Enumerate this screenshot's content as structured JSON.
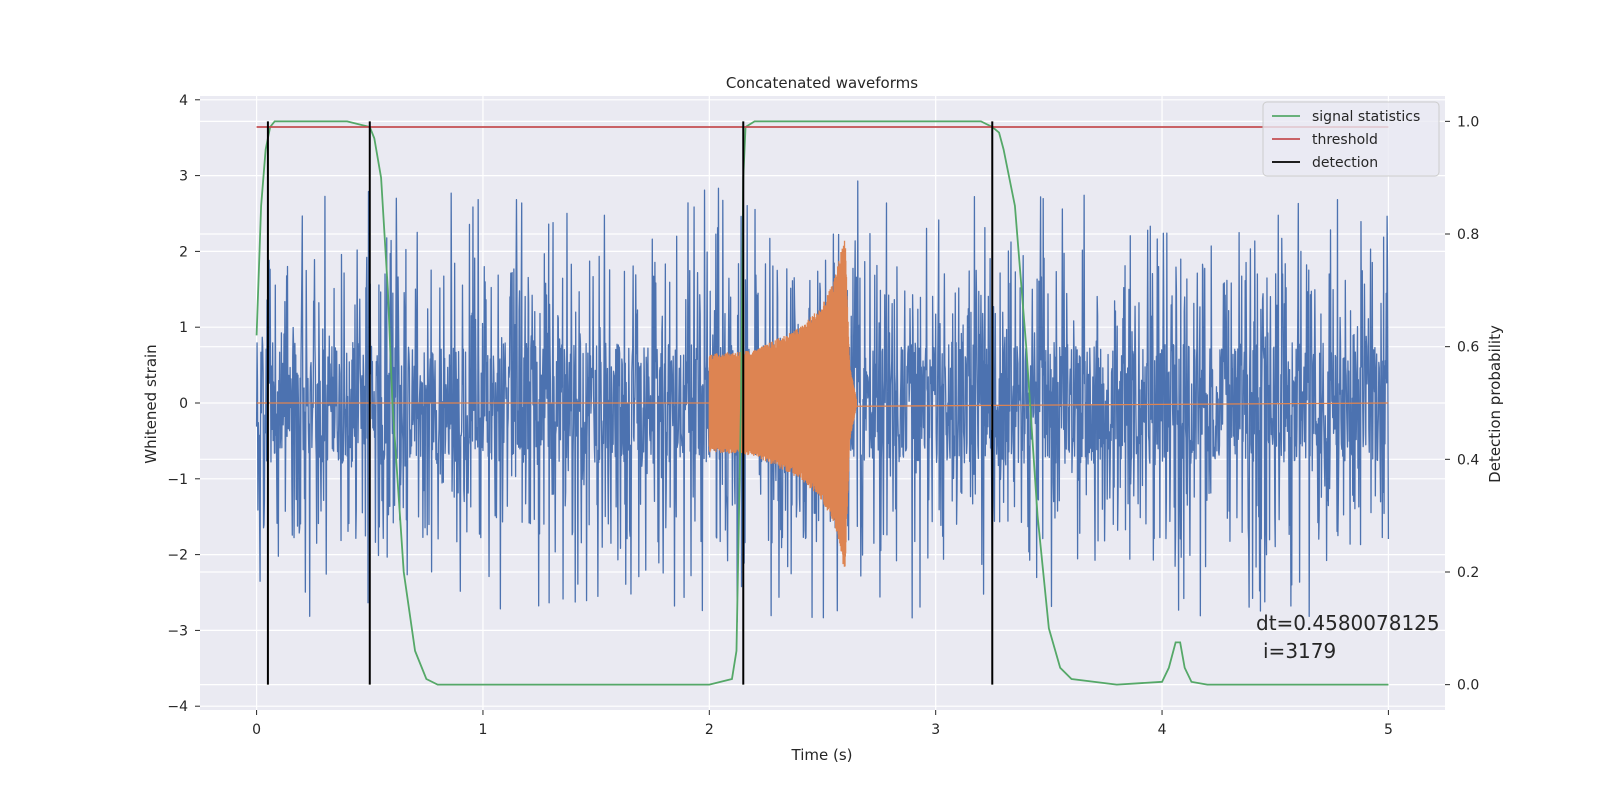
{
  "chart_data": {
    "type": "line",
    "title": "Concatenated waveforms",
    "xlabel": "Time (s)",
    "ylabel": "Whitened strain",
    "y2label": "Detection probability",
    "xlim": [
      -0.25,
      5.25
    ],
    "ylim": [
      -4.05,
      4.05
    ],
    "y2lim": [
      -0.045,
      1.045
    ],
    "xticks": [
      0,
      1,
      2,
      3,
      4,
      5
    ],
    "xtick_labels": [
      "0",
      "1",
      "2",
      "3",
      "4",
      "5"
    ],
    "yticks": [
      -4,
      -3,
      -2,
      -1,
      0,
      1,
      2,
      3,
      4
    ],
    "ytick_labels": [
      "−4",
      "−3",
      "−2",
      "−1",
      "0",
      "1",
      "2",
      "3",
      "4"
    ],
    "y2ticks": [
      0.0,
      0.2,
      0.4,
      0.6,
      0.8,
      1.0
    ],
    "y2tick_labels": [
      "0.0",
      "0.2",
      "0.4",
      "0.6",
      "0.8",
      "1.0"
    ],
    "grid": true,
    "legend_position": "top-right",
    "colors": {
      "plot_bg": "#eaeaf2",
      "grid": "#ffffff",
      "strain": "#4c72b0",
      "injection": "#dd8452",
      "signal_statistics": "#55a868",
      "threshold": "#c44e52",
      "detection": "#000000"
    },
    "series": [
      {
        "axis": "left",
        "style": "noise",
        "x_range": [
          0,
          5
        ],
        "envelope": [
          [
            0.0,
            2.8
          ],
          [
            0.5,
            2.9
          ],
          [
            1.0,
            2.8
          ],
          [
            2.0,
            2.9
          ],
          [
            2.5,
            3.0
          ],
          [
            3.0,
            2.8
          ],
          [
            3.5,
            2.8
          ],
          [
            4.0,
            2.8
          ],
          [
            4.5,
            2.9
          ],
          [
            5.0,
            2.9
          ]
        ]
      },
      {
        "axis": "left",
        "style": "chirp",
        "x_range": [
          2.0,
          2.65
        ],
        "envelope": [
          [
            2.0,
            0.65
          ],
          [
            2.2,
            0.7
          ],
          [
            2.4,
            1.0
          ],
          [
            2.5,
            1.3
          ],
          [
            2.55,
            1.6
          ],
          [
            2.6,
            2.25
          ],
          [
            2.62,
            0.5
          ],
          [
            2.65,
            0.05
          ]
        ]
      },
      {
        "name": "signal statistics",
        "axis": "right",
        "style": "line",
        "x": [
          0.0,
          0.02,
          0.04,
          0.06,
          0.08,
          0.1,
          0.2,
          0.4,
          0.5,
          0.52,
          0.55,
          0.58,
          0.6,
          0.65,
          0.7,
          0.72,
          0.75,
          0.8,
          1.0,
          1.5,
          2.0,
          2.1,
          2.12,
          2.14,
          2.15,
          2.16,
          2.2,
          2.5,
          3.0,
          3.2,
          3.25,
          3.28,
          3.3,
          3.35,
          3.4,
          3.45,
          3.5,
          3.55,
          3.6,
          3.8,
          4.0,
          4.03,
          4.06,
          4.08,
          4.1,
          4.13,
          4.2,
          5.0
        ],
        "y": [
          0.62,
          0.85,
          0.95,
          0.99,
          1.0,
          1.0,
          1.0,
          1.0,
          0.99,
          0.97,
          0.9,
          0.7,
          0.5,
          0.2,
          0.06,
          0.04,
          0.01,
          0.0,
          0.0,
          0.0,
          0.0,
          0.01,
          0.06,
          0.5,
          0.9,
          0.99,
          1.0,
          1.0,
          1.0,
          1.0,
          0.99,
          0.98,
          0.95,
          0.85,
          0.6,
          0.3,
          0.1,
          0.03,
          0.01,
          0.0,
          0.005,
          0.03,
          0.075,
          0.075,
          0.03,
          0.005,
          0.0,
          0.0
        ]
      },
      {
        "name": "threshold",
        "axis": "right",
        "style": "line",
        "x": [
          0.0,
          5.0
        ],
        "y": [
          0.99,
          0.99
        ]
      },
      {
        "name": "detection",
        "axis": "right",
        "style": "vlines",
        "x": [
          0.05,
          0.5,
          2.15,
          3.25
        ],
        "y_range": [
          0.0,
          1.0
        ]
      }
    ],
    "annotation": {
      "line1": "dt=0.4580078125",
      "line2": "i=3179"
    }
  }
}
